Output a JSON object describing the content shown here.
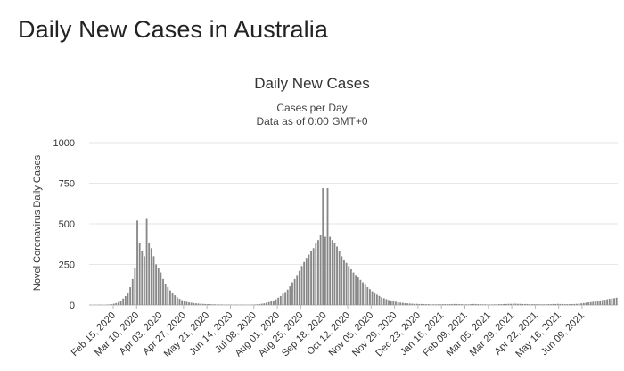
{
  "page": {
    "title": "Daily New Cases in Australia"
  },
  "chart_data": {
    "type": "bar",
    "title": "Daily New Cases",
    "subtitle": "Cases per Day",
    "subtitle2": "Data as of 0:00 GMT+0",
    "ylabel": "Novel Coronavirus Daily Cases",
    "xlabel": "",
    "ylim": [
      0,
      1000
    ],
    "yticks": [
      "0",
      "250",
      "500",
      "750",
      "1000"
    ],
    "grid": true,
    "legend": "none",
    "bar_color": "#888888",
    "x_tick_labels": [
      "Feb 15, 2020",
      "Mar 10, 2020",
      "Apr 03, 2020",
      "Apr 27, 2020",
      "May 21, 2020",
      "Jun 14, 2020",
      "Jul 08, 2020",
      "Aug 01, 2020",
      "Aug 25, 2020",
      "Sep 18, 2020",
      "Oct 12, 2020",
      "Nov 05, 2020",
      "Nov 29, 2020",
      "Dec 23, 2020",
      "Jan 16, 2021",
      "Feb 09, 2021",
      "Mar 05, 2021",
      "Mar 29, 2021",
      "Apr 22, 2021",
      "May 16, 2021",
      "Jun 09, 2021"
    ],
    "series": [
      {
        "values": [
          1,
          0,
          1,
          0,
          2,
          1,
          0,
          2,
          3,
          5,
          8,
          12,
          18,
          25,
          40,
          55,
          75,
          110,
          160,
          230,
          520,
          380,
          330,
          300,
          530,
          380,
          350,
          300,
          250,
          230,
          200,
          160,
          130,
          110,
          90,
          75,
          60,
          48,
          38,
          30,
          24,
          20,
          16,
          14,
          12,
          10,
          9,
          8,
          7,
          6,
          5,
          5,
          4,
          4,
          3,
          3,
          3,
          2,
          2,
          2,
          2,
          1,
          2,
          1,
          1,
          2,
          1,
          1,
          2,
          2,
          3,
          4,
          5,
          8,
          10,
          14,
          18,
          22,
          28,
          35,
          45,
          55,
          70,
          80,
          95,
          115,
          140,
          160,
          185,
          210,
          240,
          265,
          290,
          310,
          330,
          350,
          380,
          400,
          430,
          720,
          420,
          720,
          420,
          400,
          380,
          360,
          330,
          300,
          280,
          260,
          240,
          220,
          200,
          185,
          170,
          155,
          140,
          125,
          110,
          98,
          85,
          74,
          64,
          56,
          48,
          42,
          36,
          31,
          27,
          23,
          20,
          17,
          15,
          13,
          11,
          10,
          9,
          8,
          7,
          7,
          6,
          6,
          5,
          5,
          5,
          4,
          4,
          4,
          4,
          4,
          5,
          5,
          5,
          5,
          6,
          6,
          6,
          5,
          5,
          4,
          4,
          4,
          5,
          6,
          6,
          5,
          5,
          4,
          4,
          3,
          3,
          3,
          4,
          4,
          5,
          5,
          6,
          6,
          7,
          7,
          8,
          8,
          7,
          7,
          6,
          6,
          6,
          5,
          5,
          5,
          4,
          4,
          4,
          4,
          5,
          5,
          5,
          6,
          6,
          7,
          6,
          6,
          5,
          5,
          5,
          6,
          6,
          7,
          8,
          10,
          12,
          14,
          16,
          18,
          20,
          22,
          25,
          28,
          30,
          32,
          35,
          38,
          40,
          42,
          45
        ]
      }
    ]
  }
}
